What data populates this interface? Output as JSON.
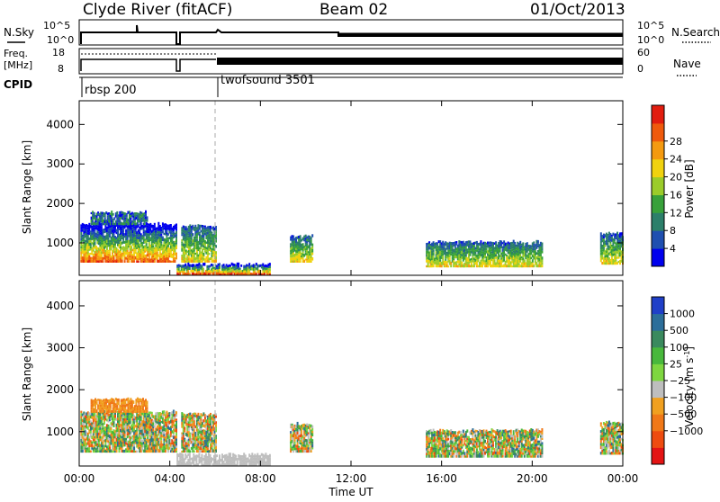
{
  "header": {
    "station": "Clyde River (fitACF)",
    "beam": "Beam 02",
    "date": "01/Oct/2013"
  },
  "summary_panels": {
    "nsky_label": "N.Sky",
    "nsearch_label": "N.Search",
    "noise_ticks": [
      "10^5",
      "10^0"
    ],
    "freq_label_1": "Freq.",
    "freq_label_2": "[MHz]",
    "freq_ticks": [
      "18",
      "8"
    ],
    "nave_label": "Nave",
    "nave_ticks": [
      "60",
      "0"
    ],
    "cpid_label": "CPID",
    "cpid_segments": [
      {
        "name": "rbsp 200",
        "start_hour": 0.0
      },
      {
        "name": "twofsound 3501",
        "start_hour": 6.0
      }
    ]
  },
  "time_axis": {
    "label": "Time UT",
    "ticks": [
      "00:00",
      "04:00",
      "08:00",
      "12:00",
      "16:00",
      "20:00",
      "00:00"
    ],
    "tick_hours": [
      0,
      4,
      8,
      12,
      16,
      20,
      24
    ]
  },
  "chart_data": [
    {
      "type": "heatmap",
      "panel": "power",
      "ylabel": "Slant Range [km]",
      "yticks": [
        1000,
        2000,
        3000,
        4000
      ],
      "ylim": [
        180,
        4600
      ],
      "xlim": [
        0,
        24
      ],
      "colorbar": {
        "label": "Power [dB]",
        "ticks": [
          "4",
          "8",
          "12",
          "16",
          "20",
          "24",
          "28"
        ],
        "colors": [
          "#0000ee",
          "#1f4fb0",
          "#2c7f6a",
          "#38a13a",
          "#9bcc2a",
          "#f0d20f",
          "#f49a10",
          "#ef5a0c",
          "#e21d0f"
        ]
      },
      "regions": [
        {
          "t0": 0.05,
          "t1": 4.3,
          "r0": 500,
          "r1": 1450,
          "intensity": "high"
        },
        {
          "t0": 0.5,
          "t1": 3.0,
          "r0": 1450,
          "r1": 1750,
          "intensity": "low"
        },
        {
          "t0": 4.5,
          "t1": 6.0,
          "r0": 500,
          "r1": 1400,
          "intensity": "mid"
        },
        {
          "t0": 4.3,
          "t1": 8.4,
          "r0": 180,
          "r1": 430,
          "intensity": "high"
        },
        {
          "t0": 9.3,
          "t1": 10.3,
          "r0": 500,
          "r1": 1150,
          "intensity": "mid"
        },
        {
          "t0": 15.3,
          "t1": 20.4,
          "r0": 380,
          "r1": 1000,
          "intensity": "mid"
        },
        {
          "t0": 23.0,
          "t1": 24.0,
          "r0": 450,
          "r1": 1200,
          "intensity": "mid"
        }
      ]
    },
    {
      "type": "heatmap",
      "panel": "velocity",
      "ylabel": "Slant Range [km]",
      "yticks": [
        1000,
        2000,
        3000,
        4000
      ],
      "ylim": [
        180,
        4600
      ],
      "xlim": [
        0,
        24
      ],
      "colorbar": {
        "label": "Velocity [m s^-1]",
        "ticks": [
          "1000",
          "500",
          "100",
          "25",
          "-25",
          "-100",
          "-500",
          "-1000"
        ],
        "colors": [
          "#2040c8",
          "#2c6e9a",
          "#3a8a5e",
          "#48b83c",
          "#7ed640",
          "#bebebe",
          "#f0a020",
          "#f07818",
          "#ee4c10",
          "#e41414"
        ]
      },
      "regions": [
        {
          "t0": 0.05,
          "t1": 4.3,
          "r0": 500,
          "r1": 1450,
          "intensity": "mixed"
        },
        {
          "t0": 0.5,
          "t1": 3.0,
          "r0": 1450,
          "r1": 1750,
          "intensity": "low"
        },
        {
          "t0": 4.5,
          "t1": 6.0,
          "r0": 500,
          "r1": 1400,
          "intensity": "mixed"
        },
        {
          "t0": 4.3,
          "t1": 8.4,
          "r0": 180,
          "r1": 430,
          "intensity": "ground"
        },
        {
          "t0": 9.3,
          "t1": 10.3,
          "r0": 500,
          "r1": 1150,
          "intensity": "mixed"
        },
        {
          "t0": 15.3,
          "t1": 20.4,
          "r0": 380,
          "r1": 1000,
          "intensity": "mixed"
        },
        {
          "t0": 23.0,
          "t1": 24.0,
          "r0": 450,
          "r1": 1200,
          "intensity": "mixed"
        }
      ]
    }
  ]
}
